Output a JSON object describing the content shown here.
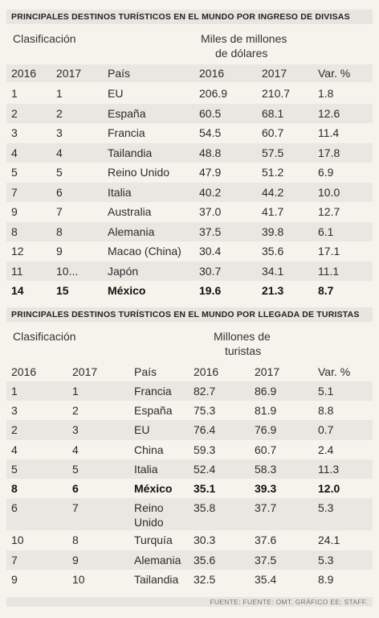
{
  "table1": {
    "title": "PRINCIPALES DESTINOS TURÍSTICOS EN EL MUNDO POR INGRESO DE DIVISAS",
    "label_rank": "Clasificación",
    "label_units_1": "Miles de millones",
    "label_units_2": "de dólares",
    "headers": [
      "2016",
      "2017",
      "País",
      "2016",
      "2017",
      "Var. %"
    ],
    "rows": [
      [
        "1",
        "1",
        "EU",
        "206.9",
        "210.7",
        "1.8"
      ],
      [
        "2",
        "2",
        "España",
        "60.5",
        "68.1",
        "12.6"
      ],
      [
        "3",
        "3",
        "Francia",
        "54.5",
        "60.7",
        "11.4"
      ],
      [
        "4",
        "4",
        "Tailandia",
        "48.8",
        "57.5",
        "17.8"
      ],
      [
        "5",
        "5",
        "Reino Unido",
        "47.9",
        "51.2",
        "6.9"
      ],
      [
        "7",
        "6",
        "Italia",
        "40.2",
        "44.2",
        "10.0"
      ],
      [
        "9",
        "7",
        "Australia",
        "37.0",
        "41.7",
        "12.7"
      ],
      [
        "8",
        "8",
        "Alemania",
        "37.5",
        "39.8",
        "6.1"
      ],
      [
        "12",
        "9",
        "Macao (China)",
        "30.4",
        "35.6",
        "17.1"
      ],
      [
        "11",
        "10...",
        "Japón",
        "30.7",
        "34.1",
        "11.1"
      ],
      [
        "14",
        "15",
        "México",
        "19.6",
        "21.3",
        "8.7"
      ]
    ]
  },
  "table2": {
    "title": "PRINCIPALES DESTINOS TURÍSTICOS EN EL MUNDO POR LLEGADA DE TURISTAS",
    "label_rank": "Clasificación",
    "label_units_1": "Millones de",
    "label_units_2": "turistas",
    "headers": [
      "2016",
      "2017",
      "País",
      "2016",
      "2017",
      "Var. %"
    ],
    "rows": [
      [
        "1",
        "1",
        "Francia",
        "82.7",
        "86.9",
        "5.1"
      ],
      [
        "3",
        "2",
        "España",
        "75.3",
        "81.9",
        "8.8"
      ],
      [
        "2",
        "3",
        "EU",
        "76.4",
        "76.9",
        "0.7"
      ],
      [
        "4",
        "4",
        "China",
        "59.3",
        "60.7",
        "2.4"
      ],
      [
        "5",
        "5",
        "Italia",
        "52.4",
        "58.3",
        "11.3"
      ],
      [
        "8",
        "6",
        "México",
        "35.1",
        "39.3",
        "12.0"
      ],
      [
        "6",
        "7",
        "Reino Unido",
        "35.8",
        "37.7",
        "5.3"
      ],
      [
        "10",
        "8",
        "Turquía",
        "30.3",
        "37.6",
        "24.1"
      ],
      [
        "7",
        "9",
        "Alemania",
        "35.6",
        "37.5",
        "5.3"
      ],
      [
        "9",
        "10",
        "Tailandia",
        "32.5",
        "35.4",
        "8.9"
      ]
    ]
  },
  "footer": "FUENTE: FUENTE: OMT. GRÁFICO EE: STAFF."
}
